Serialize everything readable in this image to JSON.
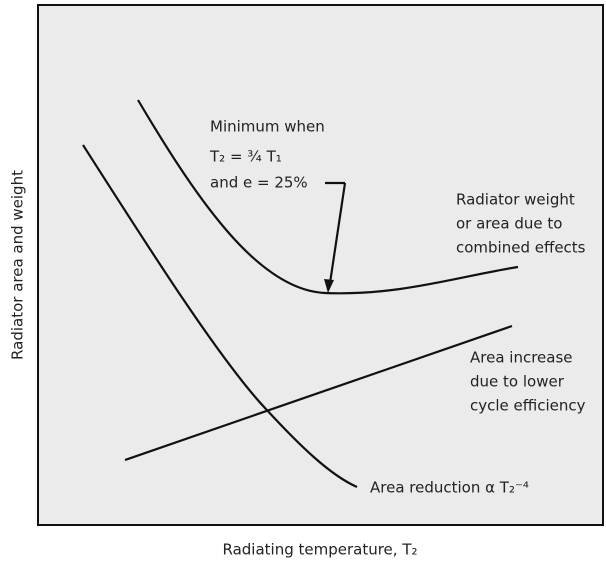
{
  "x_axis_label": "Radiating temperature, T₂",
  "y_axis_label": "Radiator area and weight",
  "annotations": {
    "minimum": [
      "Minimum when",
      "T₂ = ¾ T₁",
      "and e = 25%"
    ],
    "combined": [
      "Radiator weight",
      "or area due to",
      "combined effects"
    ],
    "increase": [
      "Area increase",
      "due to lower",
      "cycle efficiency"
    ],
    "reduction": "Area reduction α T₂⁻⁴"
  }
}
